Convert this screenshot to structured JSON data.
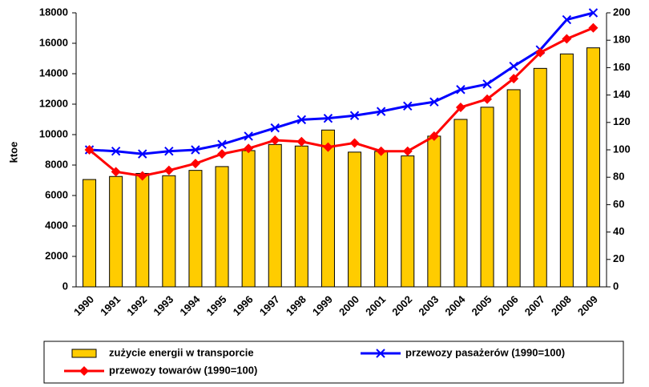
{
  "chart_data": {
    "type": "bar_line",
    "y_label": "ktoe",
    "categories": [
      "1990",
      "1991",
      "1992",
      "1993",
      "1994",
      "1995",
      "1996",
      "1997",
      "1998",
      "1999",
      "2000",
      "2001",
      "2002",
      "2003",
      "2004",
      "2005",
      "2006",
      "2007",
      "2008",
      "2009"
    ],
    "ylim": [
      0,
      18000
    ],
    "yticks": [
      0,
      2000,
      4000,
      6000,
      8000,
      10000,
      12000,
      14000,
      16000,
      18000
    ],
    "y2lim": [
      0,
      200
    ],
    "y2ticks": [
      0,
      20,
      40,
      60,
      80,
      100,
      120,
      140,
      160,
      180,
      200
    ],
    "series": [
      {
        "name": "zużycie energii w transporcie",
        "type": "bar",
        "color": "#ffcc00",
        "values": [
          7050,
          7250,
          7450,
          7300,
          7650,
          7900,
          8950,
          9350,
          9250,
          10300,
          8850,
          8900,
          8600,
          9900,
          11000,
          11800,
          12950,
          14350,
          15300,
          15700
        ]
      },
      {
        "name": "przewozy pasażerów (1990=100)",
        "type": "line",
        "axis": "y2",
        "color": "#0000ff",
        "marker": "x",
        "values": [
          100,
          99,
          97,
          99,
          100,
          104,
          110,
          116,
          122,
          123,
          125,
          128,
          132,
          135,
          144,
          148,
          161,
          173,
          195,
          200
        ]
      },
      {
        "name": "przewozy towarów (1990=100)",
        "type": "line",
        "axis": "y2",
        "color": "#ff0000",
        "marker": "diamond",
        "values": [
          100,
          84,
          81,
          85,
          90,
          97,
          101,
          107,
          106,
          102,
          105,
          99,
          99,
          110,
          131,
          137,
          152,
          171,
          181,
          189
        ]
      }
    ]
  }
}
